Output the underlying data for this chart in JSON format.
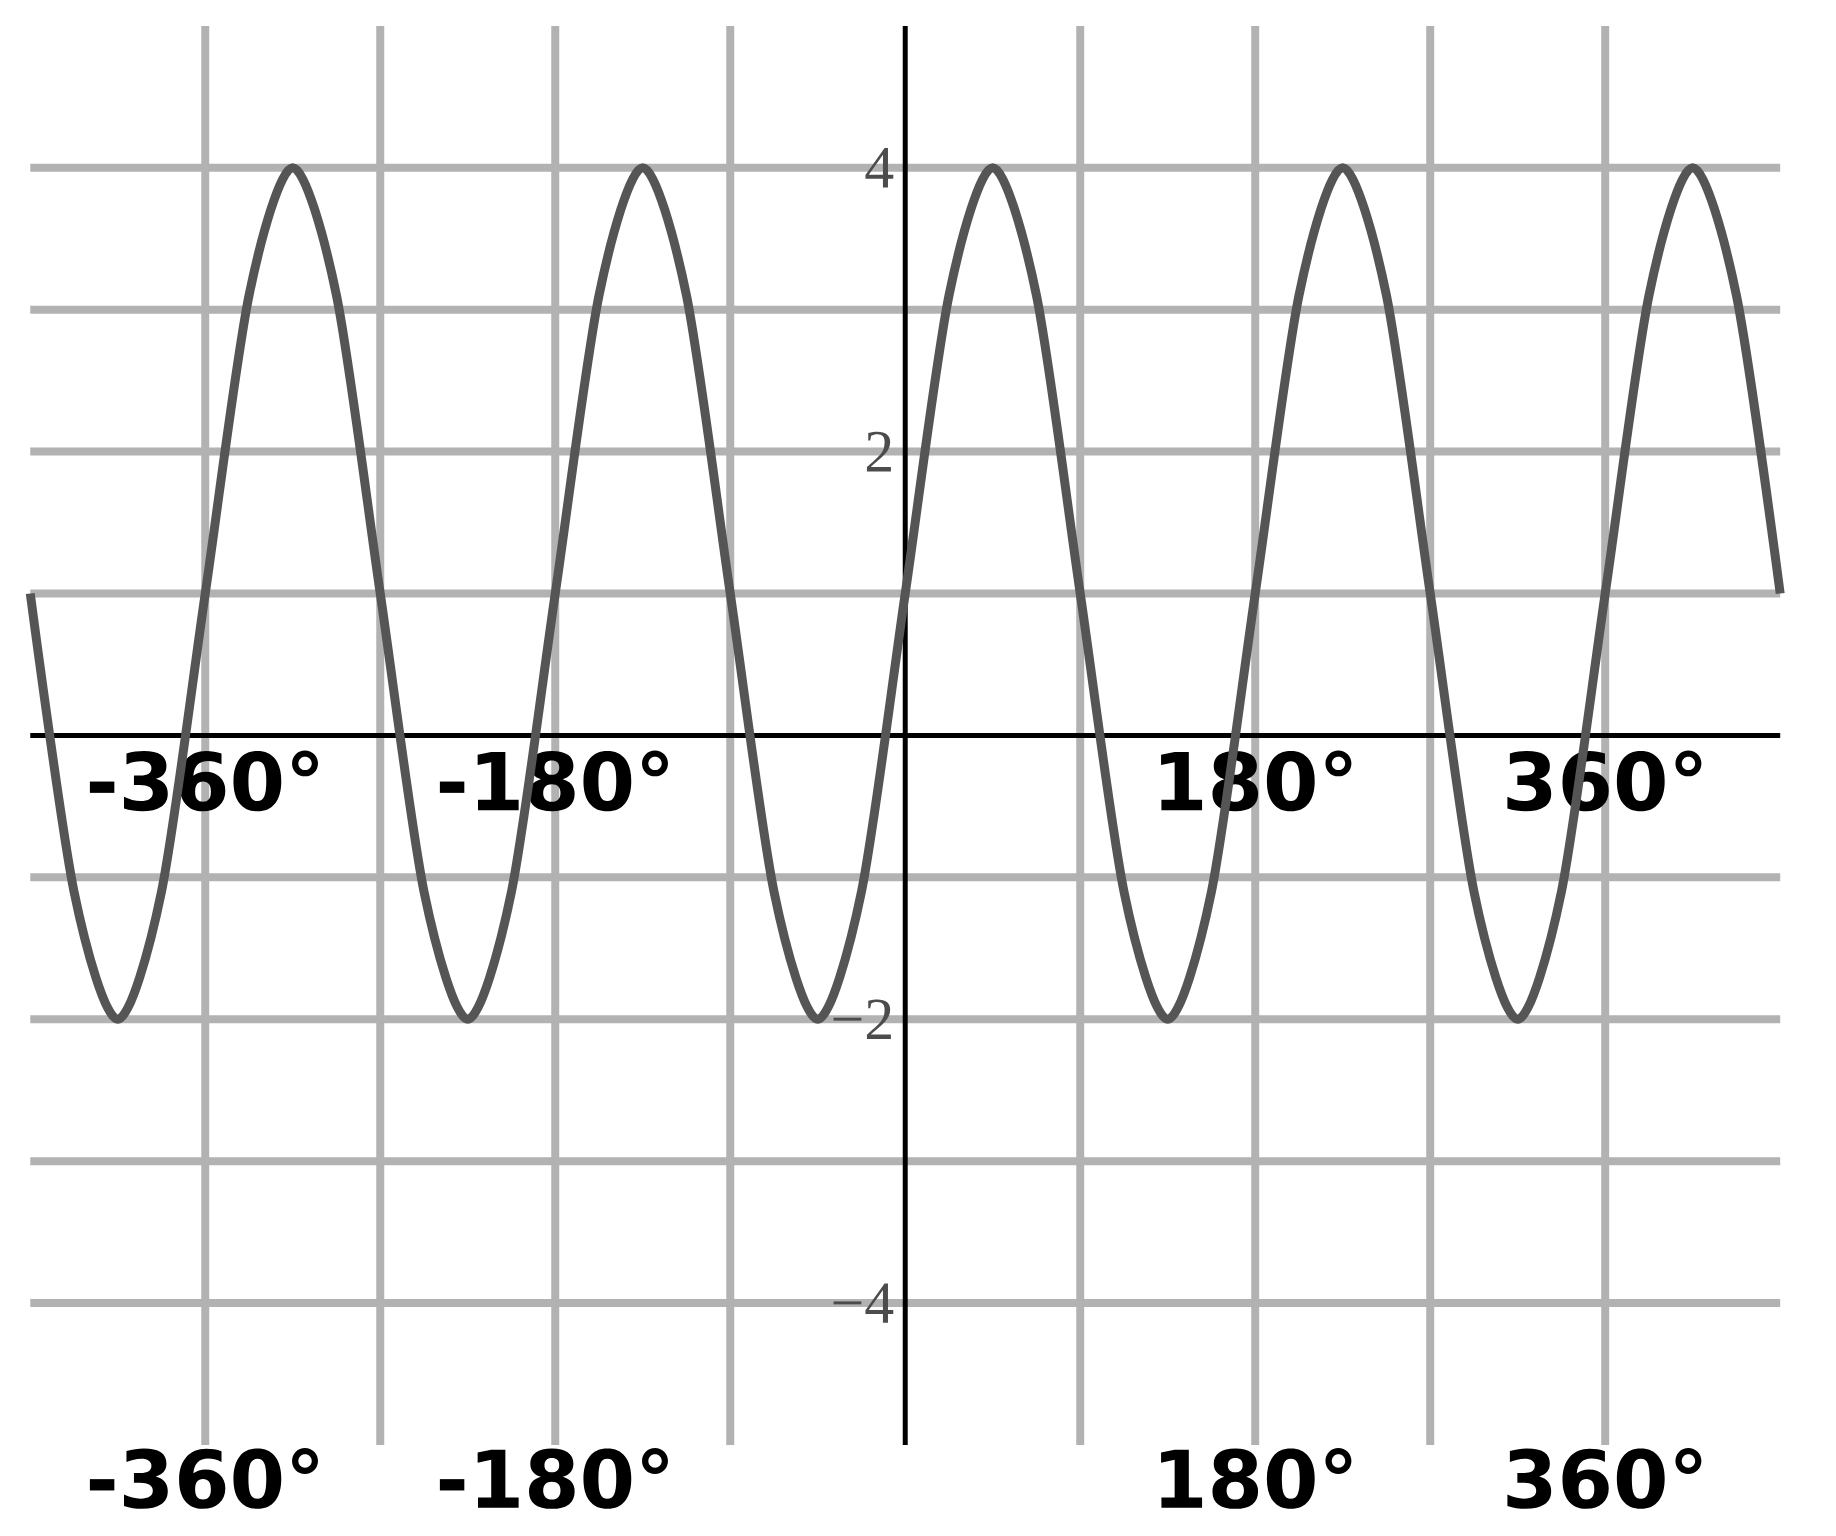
{
  "chart_data": {
    "type": "line",
    "x": [
      -450,
      -427.5,
      -405,
      -382.5,
      -360,
      -337.5,
      -315,
      -292.5,
      -270,
      -247.5,
      -225,
      -202.5,
      -180,
      -157.5,
      -135,
      -112.5,
      -90,
      -67.5,
      -45,
      -22.5,
      0,
      22.5,
      45,
      67.5,
      90,
      112.5,
      135,
      157.5,
      180,
      202.5,
      225,
      247.5,
      270,
      292.5,
      315,
      337.5,
      360,
      382.5,
      405,
      427.5,
      450
    ],
    "series": [
      {
        "color": "#555555",
        "values": [
          1,
          -1.1,
          -2,
          -1.1,
          1,
          3.1,
          4,
          3.1,
          1,
          -1.1,
          -2,
          -1.1,
          1,
          3.1,
          4,
          3.1,
          1,
          -1.1,
          -2,
          -1.1,
          1,
          3.1,
          4,
          3.1,
          1,
          -1.1,
          -2,
          -1.1,
          1,
          3.1,
          4,
          3.1,
          1,
          -1.1,
          -2,
          -1.1,
          1,
          3.1,
          4,
          3.1,
          1
        ]
      }
    ],
    "xlim": [
      -450,
      450
    ],
    "ylim": [
      -5,
      5
    ],
    "xticks": [
      {
        "value": -360,
        "label": "-360°"
      },
      {
        "value": -270,
        "label": null
      },
      {
        "value": -180,
        "label": "-180°"
      },
      {
        "value": -90,
        "label": null
      },
      {
        "value": 90,
        "label": null
      },
      {
        "value": 180,
        "label": "180°"
      },
      {
        "value": 270,
        "label": null
      },
      {
        "value": 360,
        "label": "360°"
      }
    ],
    "x2lim": [
      -450,
      450
    ],
    "x2ticks": [
      {
        "value": -360,
        "label": "-360°"
      },
      {
        "value": -180,
        "label": "-180°"
      },
      {
        "value": 180,
        "label": "180°"
      },
      {
        "value": 360,
        "label": "360°"
      }
    ],
    "yticks": [
      {
        "value": -4,
        "label": "−4"
      },
      {
        "value": -3,
        "label": null
      },
      {
        "value": -2,
        "label": "−2"
      },
      {
        "value": -1,
        "label": null
      },
      {
        "value": 1,
        "label": null
      },
      2,
      {
        "value": 3,
        "label": null
      },
      4
    ],
    "grid": true,
    "marker": "none",
    "line_style": "solid"
  }
}
